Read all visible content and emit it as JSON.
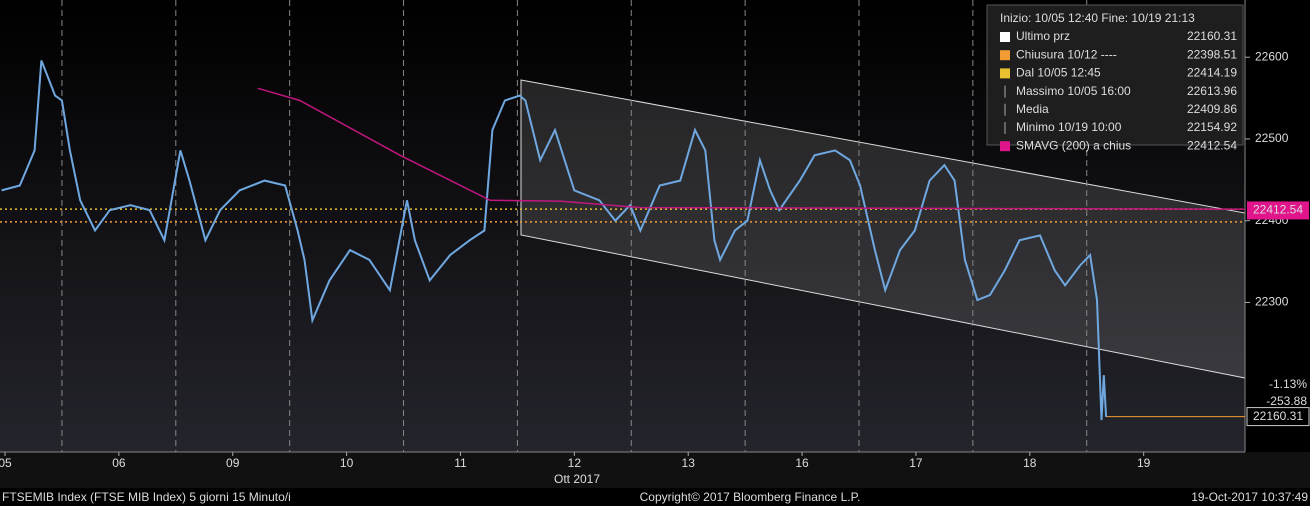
{
  "chart_data": {
    "type": "line",
    "subtitle": "Ott 2017",
    "footer_left": "FTSEMIB Index (FTSE MIB Index) 5 giorni 15 Minuto/i",
    "footer_center": "Copyright© 2017 Bloomberg Finance L.P.",
    "footer_right": "19-Oct-2017 10:37:49",
    "ylim": [
      22117,
      22670
    ],
    "yticks": [
      22300,
      22400,
      22500,
      22600
    ],
    "xlim": [
      -0.044,
      10.89
    ],
    "xticks": [
      {
        "value": 0,
        "label": "05"
      },
      {
        "value": 1,
        "label": "06"
      },
      {
        "value": 2,
        "label": "09"
      },
      {
        "value": 3,
        "label": "10"
      },
      {
        "value": 4,
        "label": "11"
      },
      {
        "value": 5,
        "label": "12"
      },
      {
        "value": 6,
        "label": "13"
      },
      {
        "value": 7,
        "label": "16"
      },
      {
        "value": 8,
        "label": "17"
      },
      {
        "value": 9,
        "label": "18"
      },
      {
        "value": 10,
        "label": "19"
      }
    ],
    "grid": true,
    "series": [
      {
        "name": "Ultimo prz",
        "color": "#6fa8e0",
        "x": [
          -0.03,
          0.13,
          0.26,
          0.32,
          0.44,
          0.5,
          0.57,
          0.66,
          0.79,
          0.92,
          1.1,
          1.27,
          1.4,
          1.54,
          1.62,
          1.76,
          1.89,
          2.06,
          2.28,
          2.46,
          2.57,
          2.63,
          2.7,
          2.85,
          3.03,
          3.2,
          3.38,
          3.53,
          3.6,
          3.73,
          3.91,
          4.08,
          4.21,
          4.28,
          4.39,
          4.52,
          4.57,
          4.7,
          4.83,
          5.0,
          5.22,
          5.36,
          5.49,
          5.58,
          5.75,
          5.93,
          6.06,
          6.15,
          6.23,
          6.28,
          6.41,
          6.52,
          6.63,
          6.72,
          6.8,
          6.98,
          7.11,
          7.29,
          7.42,
          7.51,
          7.64,
          7.73,
          7.86,
          7.99,
          8.12,
          8.25,
          8.34,
          8.43,
          8.54,
          8.65,
          8.78,
          8.91,
          9.09,
          9.22,
          9.31,
          9.44,
          9.53,
          9.59,
          9.63,
          9.65,
          9.67
        ],
        "values": [
          22437,
          22443,
          22486,
          22596,
          22553,
          22547,
          22486,
          22425,
          22388,
          22413,
          22419,
          22413,
          22376,
          22486,
          22449,
          22376,
          22413,
          22437,
          22449,
          22443,
          22388,
          22352,
          22278,
          22327,
          22364,
          22352,
          22315,
          22425,
          22376,
          22327,
          22358,
          22376,
          22388,
          22511,
          22547,
          22553,
          22547,
          22474,
          22511,
          22437,
          22425,
          22400,
          22419,
          22388,
          22443,
          22449,
          22511,
          22486,
          22376,
          22352,
          22388,
          22400,
          22474,
          22437,
          22413,
          22449,
          22480,
          22486,
          22474,
          22443,
          22364,
          22315,
          22364,
          22388,
          22449,
          22468,
          22449,
          22352,
          22303,
          22309,
          22339,
          22376,
          22382,
          22339,
          22321,
          22345,
          22358,
          22303,
          22156,
          22211,
          22160
        ]
      },
      {
        "name": "SMAVG (200) a chius",
        "color": "#c0177e",
        "x": [
          2.22,
          2.59,
          3.47,
          4.26,
          4.87,
          5.58,
          10.89
        ],
        "values": [
          22562,
          22547,
          22480,
          22425,
          22424,
          22416,
          22414
        ]
      }
    ],
    "legend": {
      "header": "Inizio: 10/05 12:40 Fine: 10/19 21:13",
      "items": [
        {
          "name": "Ultimo prz",
          "value": 22160.31,
          "color": "#ffffff",
          "line": "last",
          "tag": true
        },
        {
          "name": "Chiusura 10/12 ----",
          "value": 22398.51,
          "color": "#f39c33",
          "line": "dotted"
        },
        {
          "name": "Dal 10/05 12:45",
          "value": 22414.19,
          "color": "#e8c030",
          "line": "dotted"
        },
        {
          "name": "Massimo 10/05 16:00",
          "value": 22613.96
        },
        {
          "name": "Media",
          "value": 22409.86
        },
        {
          "name": "Minimo 10/19 10:00",
          "value": 22154.92
        },
        {
          "name": "SMAVG (200) a chius",
          "value": 22412.54,
          "color": "#e0158c",
          "tag": true
        }
      ]
    },
    "change": {
      "pct": -1.13,
      "pct_label": "-1.13%",
      "points": -253.88
    }
  }
}
